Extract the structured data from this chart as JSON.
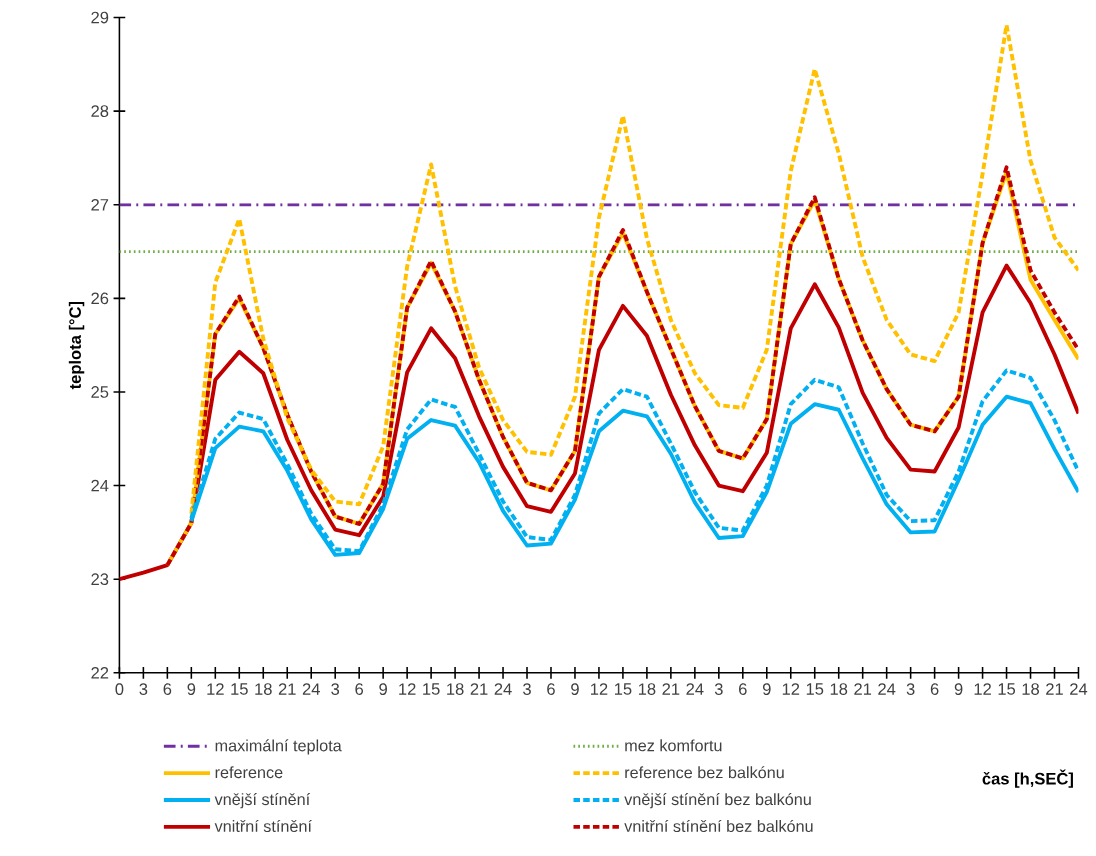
{
  "chart_data": {
    "type": "line",
    "xlabel": "čas [h,SEČ]",
    "ylabel": "teplota [°C]",
    "categories": [
      "0",
      "3",
      "6",
      "9",
      "12",
      "15",
      "18",
      "21",
      "24",
      "3",
      "6",
      "9",
      "12",
      "15",
      "18",
      "21",
      "24",
      "3",
      "6",
      "9",
      "12",
      "15",
      "18",
      "21",
      "24",
      "3",
      "6",
      "9",
      "12",
      "15",
      "18",
      "21",
      "24",
      "3",
      "6",
      "9",
      "12",
      "15",
      "18",
      "21",
      "24"
    ],
    "ylim": [
      22,
      29
    ],
    "yticks": [
      22,
      23,
      24,
      25,
      26,
      27,
      28,
      29
    ],
    "legend": "bottom",
    "ref_lines": [
      {
        "axis": "y",
        "value": 27,
        "label": "maximální teplota",
        "color": "#7030a0",
        "line_style": "dashdot"
      },
      {
        "axis": "y",
        "value": 26.5,
        "label": "mez komfortu",
        "color": "#70ad47",
        "line_style": "dotted"
      }
    ],
    "series": [
      {
        "name": "reference",
        "color": "#ffc000",
        "line_style": "solid",
        "values": [
          null,
          null,
          23.15,
          23.6,
          25.62,
          26.0,
          25.47,
          24.76,
          24.15,
          23.67,
          23.59,
          24.02,
          25.9,
          26.38,
          25.86,
          25.13,
          24.52,
          24.03,
          23.95,
          24.37,
          26.23,
          26.7,
          26.07,
          25.46,
          24.85,
          24.37,
          24.29,
          24.71,
          26.58,
          27.05,
          26.21,
          25.55,
          25.03,
          24.65,
          24.58,
          24.95,
          26.59,
          27.35,
          26.2,
          25.77,
          25.35
        ]
      },
      {
        "name": "reference bez balkónu",
        "color": "#ffc000",
        "line_style": "dashed",
        "values": [
          null,
          null,
          null,
          23.7,
          26.17,
          26.85,
          25.57,
          24.72,
          24.17,
          23.83,
          23.8,
          24.42,
          26.34,
          27.43,
          26.13,
          25.26,
          24.7,
          24.36,
          24.33,
          24.95,
          26.86,
          27.95,
          26.64,
          25.77,
          25.2,
          24.86,
          24.83,
          25.45,
          27.36,
          28.45,
          27.55,
          26.44,
          25.77,
          25.4,
          25.33,
          25.85,
          27.33,
          28.92,
          27.47,
          26.65,
          26.3
        ]
      },
      {
        "name": "vnější stínění",
        "color": "#00b0f0",
        "line_style": "solid",
        "values": [
          null,
          null,
          null,
          23.62,
          24.4,
          24.63,
          24.58,
          24.16,
          23.64,
          23.26,
          23.28,
          23.75,
          24.5,
          24.7,
          24.64,
          24.25,
          23.73,
          23.36,
          23.38,
          23.85,
          24.58,
          24.8,
          24.74,
          24.34,
          23.82,
          23.44,
          23.46,
          23.93,
          24.66,
          24.87,
          24.81,
          24.29,
          23.8,
          23.5,
          23.51,
          24.06,
          24.65,
          24.95,
          24.88,
          24.39,
          23.93
        ]
      },
      {
        "name": "vnější stínění bez balkónu",
        "color": "#00b0f0",
        "line_style": "dashed",
        "values": [
          null,
          null,
          null,
          23.65,
          24.5,
          24.78,
          24.71,
          24.23,
          23.7,
          23.32,
          23.3,
          23.8,
          24.6,
          24.92,
          24.84,
          24.34,
          23.83,
          23.45,
          23.42,
          23.9,
          24.77,
          25.03,
          24.95,
          24.45,
          23.93,
          23.55,
          23.52,
          24.0,
          24.87,
          25.13,
          25.05,
          24.45,
          23.9,
          23.62,
          23.63,
          24.15,
          24.9,
          25.23,
          25.15,
          24.7,
          24.15
        ]
      },
      {
        "name": "vnitřní stínění",
        "color": "#c00000",
        "line_style": "solid",
        "values": [
          23.0,
          23.07,
          23.15,
          23.6,
          25.13,
          25.43,
          25.2,
          24.49,
          23.95,
          23.53,
          23.47,
          23.88,
          25.21,
          25.68,
          25.36,
          24.74,
          24.2,
          23.78,
          23.72,
          24.13,
          25.45,
          25.92,
          25.6,
          24.97,
          24.43,
          24.0,
          23.94,
          24.35,
          25.68,
          26.15,
          25.69,
          24.99,
          24.51,
          24.17,
          24.15,
          24.62,
          25.85,
          26.35,
          25.95,
          25.4,
          24.77
        ]
      },
      {
        "name": "vnitřní stínění bez balkónu",
        "color": "#c00000",
        "line_style": "dashed",
        "values": [
          null,
          null,
          23.15,
          23.6,
          25.62,
          26.02,
          25.47,
          24.76,
          24.15,
          23.67,
          23.59,
          24.02,
          25.9,
          26.4,
          25.86,
          25.13,
          24.52,
          24.03,
          23.95,
          24.37,
          26.23,
          26.73,
          26.07,
          25.46,
          24.85,
          24.37,
          24.29,
          24.71,
          26.58,
          27.08,
          26.21,
          25.55,
          25.03,
          24.65,
          24.58,
          24.95,
          26.59,
          27.4,
          26.3,
          25.85,
          25.45
        ]
      }
    ]
  }
}
